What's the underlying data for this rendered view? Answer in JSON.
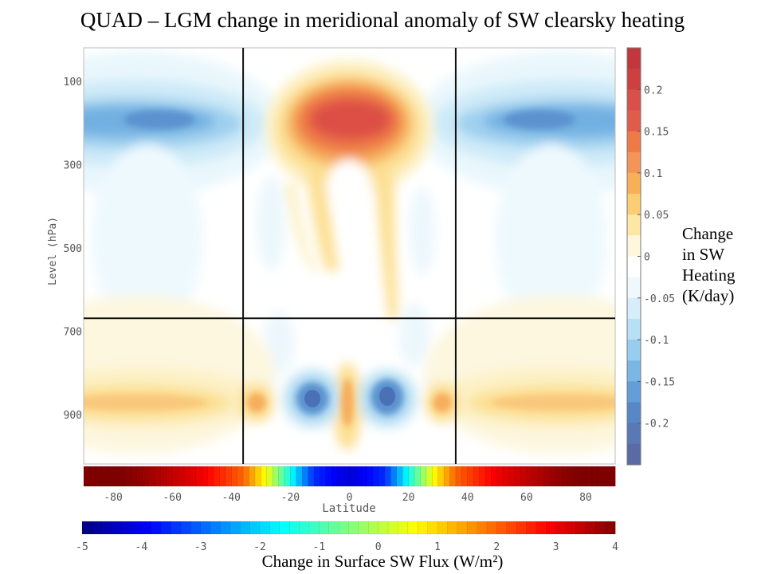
{
  "title": "QUAD – LGM change in meridional anomaly of SW clearsky heating",
  "chart_data": {
    "type": "heatmap",
    "xlabel": "Latitude",
    "ylabel": "Level (hPa)",
    "x_ticks": [
      -80,
      -60,
      -40,
      -20,
      0,
      20,
      40,
      60,
      80
    ],
    "x_range": [
      -90,
      90
    ],
    "y_ticks": [
      100,
      300,
      500,
      700,
      900
    ],
    "y_range": [
      0,
      1000
    ],
    "grid_lines": {
      "latitude": [
        -36,
        36
      ],
      "level": [
        650
      ]
    },
    "heating_colorbar": {
      "label_lines": [
        "Change",
        "in SW",
        "Heating",
        "(K/day)"
      ],
      "ticks": [
        "0.2",
        "0.15",
        "0.1",
        "0.05",
        "0",
        "-0.05",
        "-0.1",
        "-0.15",
        "-0.2"
      ],
      "range": [
        -0.25,
        0.25
      ]
    },
    "surface_flux": {
      "label": "Change in Surface SW Flux (W/m²)",
      "ticks": [
        "-5",
        "-4",
        "-3",
        "-2",
        "-1",
        "0",
        "1",
        "2",
        "3",
        "4"
      ],
      "range": [
        -5,
        4
      ],
      "latitude_values": [
        {
          "lat": -90,
          "value": 4.3
        },
        {
          "lat": -70,
          "value": 3.8
        },
        {
          "lat": -50,
          "value": 3.0
        },
        {
          "lat": -36,
          "value": 2.0
        },
        {
          "lat": -28,
          "value": 0.5
        },
        {
          "lat": -20,
          "value": -1.5
        },
        {
          "lat": -12,
          "value": -3.5
        },
        {
          "lat": 0,
          "value": -4.2
        },
        {
          "lat": 12,
          "value": -3.5
        },
        {
          "lat": 20,
          "value": -1.5
        },
        {
          "lat": 28,
          "value": 0.5
        },
        {
          "lat": 36,
          "value": 2.0
        },
        {
          "lat": 50,
          "value": 3.0
        },
        {
          "lat": 70,
          "value": 3.8
        },
        {
          "lat": 90,
          "value": 4.3
        }
      ]
    },
    "heating_features": [
      {
        "lat": -90,
        "level": 185,
        "value": -0.2
      },
      {
        "lat": 90,
        "level": 185,
        "value": -0.2
      },
      {
        "lat": 0,
        "level": 180,
        "value": 0.22
      },
      {
        "lat": -5,
        "level": 400,
        "value": 0.06
      },
      {
        "lat": 10,
        "level": 450,
        "value": 0.07
      },
      {
        "lat": -90,
        "level": 835,
        "value": 0.08
      },
      {
        "lat": 90,
        "level": 835,
        "value": 0.08
      },
      {
        "lat": -14,
        "level": 840,
        "value": -0.2
      },
      {
        "lat": 14,
        "level": 840,
        "value": -0.2
      },
      {
        "lat": 0,
        "level": 850,
        "value": 0.07
      },
      {
        "lat": -30,
        "level": 840,
        "value": 0.08
      },
      {
        "lat": 30,
        "level": 840,
        "value": 0.08
      }
    ]
  }
}
